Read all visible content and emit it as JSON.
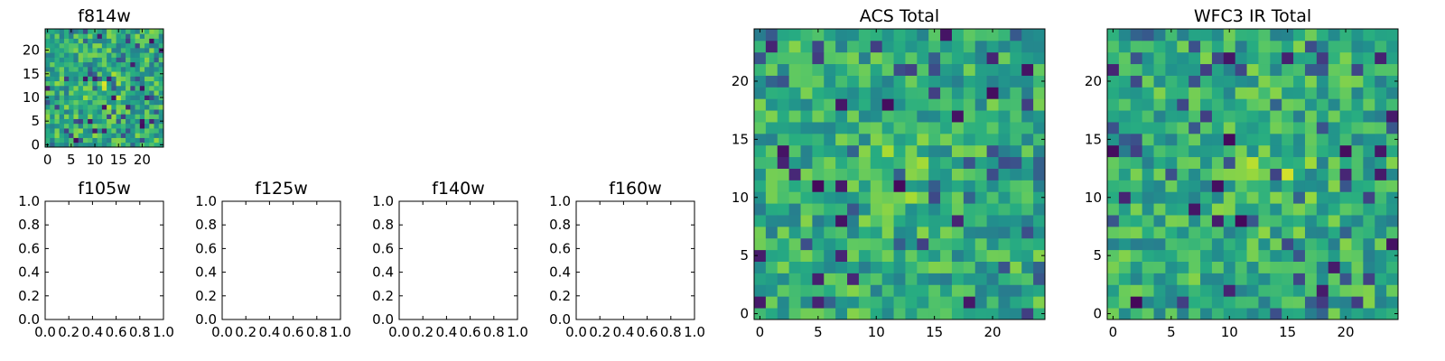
{
  "chart_data": [
    {
      "type": "heatmap",
      "title": "f814w",
      "xlabel": "",
      "ylabel": "",
      "grid_size": 25,
      "xlim": [
        -0.5,
        24.5
      ],
      "ylim": [
        -0.5,
        24.5
      ],
      "xticks": [
        0,
        5,
        10,
        15,
        20
      ],
      "yticks": [
        0,
        5,
        10,
        15,
        20
      ],
      "origin": "lower",
      "colormap": "viridis",
      "seed": 814,
      "noise": 0.22,
      "bright_center": [
        12,
        11
      ],
      "bright_radius": 6,
      "bright_boost": 0.25
    },
    {
      "type": "heatmap",
      "title": "f105w",
      "grid_size": 0,
      "xlim": [
        0,
        1
      ],
      "ylim": [
        0,
        1
      ],
      "xticks": [
        "0.0",
        "0.2",
        "0.4",
        "0.6",
        "0.8",
        "1.0"
      ],
      "yticks": [
        "0.0",
        "0.2",
        "0.4",
        "0.6",
        "0.8",
        "1.0"
      ]
    },
    {
      "type": "heatmap",
      "title": "f125w",
      "grid_size": 0,
      "xlim": [
        0,
        1
      ],
      "ylim": [
        0,
        1
      ],
      "xticks": [
        "0.0",
        "0.2",
        "0.4",
        "0.6",
        "0.8",
        "1.0"
      ],
      "yticks": [
        "0.0",
        "0.2",
        "0.4",
        "0.6",
        "0.8",
        "1.0"
      ]
    },
    {
      "type": "heatmap",
      "title": "f140w",
      "grid_size": 0,
      "xlim": [
        0,
        1
      ],
      "ylim": [
        0,
        1
      ],
      "xticks": [
        "0.0",
        "0.2",
        "0.4",
        "0.6",
        "0.8",
        "1.0"
      ],
      "yticks": [
        "0.0",
        "0.2",
        "0.4",
        "0.6",
        "0.8",
        "1.0"
      ]
    },
    {
      "type": "heatmap",
      "title": "f160w",
      "grid_size": 0,
      "xlim": [
        0,
        1
      ],
      "ylim": [
        0,
        1
      ],
      "xticks": [
        "0.0",
        "0.2",
        "0.4",
        "0.6",
        "0.8",
        "1.0"
      ],
      "yticks": [
        "0.0",
        "0.2",
        "0.4",
        "0.6",
        "0.8",
        "1.0"
      ]
    },
    {
      "type": "heatmap",
      "title": "ACS Total",
      "grid_size": 25,
      "xlim": [
        -0.5,
        24.5
      ],
      "ylim": [
        -0.5,
        24.5
      ],
      "xticks": [
        0,
        5,
        10,
        15,
        20
      ],
      "yticks": [
        0,
        5,
        10,
        15,
        20
      ],
      "origin": "lower",
      "colormap": "viridis",
      "seed": 2718,
      "noise": 0.2,
      "bright_center": [
        12,
        12
      ],
      "bright_radius": 6,
      "bright_boost": 0.2
    },
    {
      "type": "heatmap",
      "title": "WFC3 IR Total",
      "grid_size": 25,
      "xlim": [
        -0.5,
        24.5
      ],
      "ylim": [
        -0.5,
        24.5
      ],
      "xticks": [
        0,
        5,
        10,
        15,
        20
      ],
      "yticks": [
        0,
        5,
        10,
        15,
        20
      ],
      "origin": "lower",
      "colormap": "viridis",
      "seed": 3141,
      "noise": 0.2,
      "bright_center": [
        14,
        11
      ],
      "bright_radius": 6,
      "bright_boost": 0.2
    }
  ]
}
